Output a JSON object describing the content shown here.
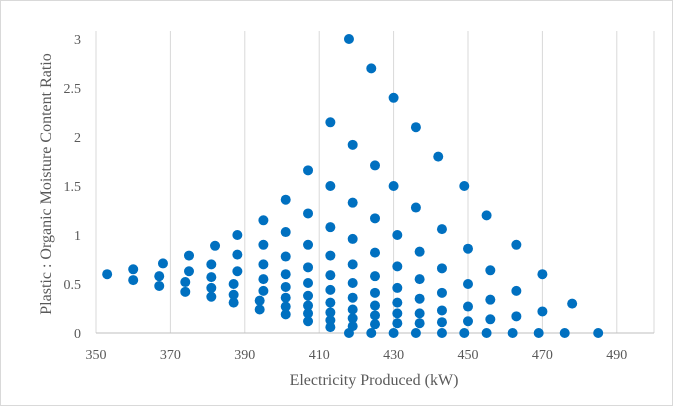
{
  "chart_data": {
    "type": "scatter",
    "title": "",
    "xlabel": "Electricity Produced (kW)",
    "ylabel": "Plastic : Organic Moisture Content Ratio",
    "xlim": [
      350,
      500
    ],
    "ylim": [
      0,
      3
    ],
    "x_ticks": [
      350,
      370,
      390,
      410,
      430,
      450,
      470,
      490
    ],
    "y_ticks": [
      0,
      0.5,
      1,
      1.5,
      2,
      2.5,
      3
    ],
    "x_tick_labels": [
      "350",
      "370",
      "390",
      "410",
      "430",
      "450",
      "470",
      "490"
    ],
    "y_tick_labels": [
      "0",
      "0.5",
      "1",
      "1.5",
      "2",
      "2.5",
      "3"
    ],
    "grid": "vertical",
    "legend": "none",
    "marker_color": "#0070c0",
    "series": [
      {
        "points": [
          [
            353,
            0.6
          ],
          [
            360,
            0.54
          ],
          [
            360,
            0.65
          ],
          [
            367,
            0.48
          ],
          [
            367,
            0.58
          ],
          [
            368,
            0.71
          ],
          [
            374,
            0.42
          ],
          [
            374,
            0.52
          ],
          [
            375,
            0.63
          ],
          [
            375,
            0.79
          ],
          [
            381,
            0.37
          ],
          [
            381,
            0.46
          ],
          [
            381,
            0.57
          ],
          [
            381,
            0.7
          ],
          [
            382,
            0.89
          ],
          [
            387,
            0.31
          ],
          [
            387,
            0.39
          ],
          [
            387,
            0.5
          ],
          [
            388,
            0.63
          ],
          [
            388,
            0.8
          ],
          [
            388,
            1.0
          ],
          [
            394,
            0.24
          ],
          [
            394,
            0.33
          ],
          [
            395,
            0.43
          ],
          [
            395,
            0.55
          ],
          [
            395,
            0.7
          ],
          [
            395,
            0.9
          ],
          [
            395,
            1.15
          ],
          [
            401,
            0.19
          ],
          [
            401,
            0.27
          ],
          [
            401,
            0.36
          ],
          [
            401,
            0.47
          ],
          [
            401,
            0.6
          ],
          [
            401,
            0.78
          ],
          [
            401,
            1.03
          ],
          [
            401,
            1.36
          ],
          [
            407,
            0.12
          ],
          [
            407,
            0.2
          ],
          [
            407,
            0.28
          ],
          [
            407,
            0.38
          ],
          [
            407,
            0.51
          ],
          [
            407,
            0.67
          ],
          [
            407,
            0.9
          ],
          [
            407,
            1.22
          ],
          [
            407,
            1.66
          ],
          [
            413,
            0.06
          ],
          [
            413,
            0.13
          ],
          [
            413,
            0.21
          ],
          [
            413,
            0.31
          ],
          [
            413,
            0.44
          ],
          [
            413,
            0.59
          ],
          [
            413,
            0.79
          ],
          [
            413,
            1.08
          ],
          [
            413,
            1.5
          ],
          [
            413,
            2.15
          ],
          [
            418,
            0.0
          ],
          [
            419,
            0.07
          ],
          [
            419,
            0.15
          ],
          [
            419,
            0.24
          ],
          [
            419,
            0.36
          ],
          [
            419,
            0.51
          ],
          [
            419,
            0.7
          ],
          [
            419,
            0.96
          ],
          [
            419,
            1.33
          ],
          [
            419,
            1.92
          ],
          [
            418,
            3.0
          ],
          [
            424,
            0.0
          ],
          [
            425,
            0.09
          ],
          [
            425,
            0.18
          ],
          [
            425,
            0.28
          ],
          [
            425,
            0.41
          ],
          [
            425,
            0.58
          ],
          [
            425,
            0.82
          ],
          [
            425,
            1.17
          ],
          [
            425,
            1.71
          ],
          [
            424,
            2.7
          ],
          [
            430,
            0.0
          ],
          [
            431,
            0.1
          ],
          [
            431,
            0.2
          ],
          [
            431,
            0.31
          ],
          [
            431,
            0.46
          ],
          [
            431,
            0.68
          ],
          [
            431,
            1.0
          ],
          [
            430,
            1.5
          ],
          [
            430,
            2.4
          ],
          [
            436,
            0.0
          ],
          [
            437,
            0.1
          ],
          [
            437,
            0.2
          ],
          [
            437,
            0.35
          ],
          [
            437,
            0.55
          ],
          [
            437,
            0.83
          ],
          [
            436,
            1.28
          ],
          [
            436,
            2.1
          ],
          [
            443,
            0.0
          ],
          [
            443,
            0.11
          ],
          [
            443,
            0.23
          ],
          [
            443,
            0.41
          ],
          [
            443,
            0.66
          ],
          [
            443,
            1.06
          ],
          [
            442,
            1.8
          ],
          [
            449,
            0.0
          ],
          [
            450,
            0.12
          ],
          [
            450,
            0.27
          ],
          [
            450,
            0.5
          ],
          [
            450,
            0.86
          ],
          [
            449,
            1.5
          ],
          [
            455,
            0.0
          ],
          [
            456,
            0.14
          ],
          [
            456,
            0.34
          ],
          [
            456,
            0.64
          ],
          [
            455,
            1.2
          ],
          [
            462,
            0.0
          ],
          [
            463,
            0.17
          ],
          [
            463,
            0.43
          ],
          [
            463,
            0.9
          ],
          [
            469,
            0.0
          ],
          [
            470,
            0.22
          ],
          [
            470,
            0.6
          ],
          [
            476,
            0.0
          ],
          [
            478,
            0.3
          ],
          [
            485,
            0.0
          ]
        ]
      }
    ]
  }
}
